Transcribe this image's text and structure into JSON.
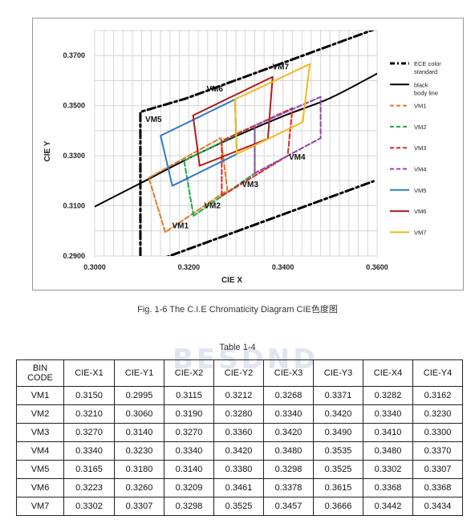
{
  "chart_data": {
    "type": "line",
    "xlabel": "CIE X",
    "ylabel": "CIE Y",
    "xlim": [
      0.3,
      0.36
    ],
    "ylim": [
      0.29,
      0.38
    ],
    "x_ticks": [
      "0.3000",
      "0.3200",
      "0.3400",
      "0.3600"
    ],
    "y_ticks": [
      "0.2900",
      "0.3100",
      "0.3300",
      "0.3500",
      "0.3700"
    ],
    "grid": true,
    "legend_position": "right",
    "series": [
      {
        "name": "ECE color standard",
        "kind": "dashdot",
        "color": "#000000",
        "segments": [
          {
            "x": [
              0.3097,
              0.3097,
              0.3193,
              0.3592
            ],
            "y": [
              0.29,
              0.3475,
              0.3528,
              0.3803
            ]
          },
          {
            "x": [
              0.313,
              0.3592
            ],
            "y": [
              0.288,
              0.3198
            ]
          }
        ]
      },
      {
        "name": "black body line",
        "kind": "solid",
        "color": "#000000",
        "x": [
          0.3,
          0.31,
          0.32,
          0.33,
          0.34,
          0.35,
          0.36
        ],
        "y": [
          0.3097,
          0.3193,
          0.329,
          0.3378,
          0.3458,
          0.353,
          0.3628
        ]
      },
      {
        "name": "VM1",
        "kind": "dashed",
        "color": "#e07b27",
        "x": [
          0.315,
          0.3115,
          0.3268,
          0.3282
        ],
        "y": [
          0.2995,
          0.3212,
          0.3371,
          0.3162
        ]
      },
      {
        "name": "VM2",
        "kind": "dashed",
        "color": "#1fa84a",
        "x": [
          0.321,
          0.319,
          0.334,
          0.334
        ],
        "y": [
          0.306,
          0.328,
          0.342,
          0.323
        ]
      },
      {
        "name": "VM3",
        "kind": "dashed",
        "color": "#e02626",
        "x": [
          0.327,
          0.327,
          0.342,
          0.341
        ],
        "y": [
          0.314,
          0.336,
          0.349,
          0.33
        ]
      },
      {
        "name": "VM4",
        "kind": "dashed",
        "color": "#8e44ad",
        "x": [
          0.334,
          0.334,
          0.348,
          0.348
        ],
        "y": [
          0.323,
          0.342,
          0.3535,
          0.337
        ]
      },
      {
        "name": "VM5",
        "kind": "solid",
        "color": "#2e7bc4",
        "x": [
          0.3165,
          0.314,
          0.3298,
          0.3302
        ],
        "y": [
          0.318,
          0.338,
          0.3525,
          0.3307
        ]
      },
      {
        "name": "VM6",
        "kind": "solid",
        "color": "#b01d1d",
        "x": [
          0.3223,
          0.3209,
          0.3378,
          0.3368
        ],
        "y": [
          0.326,
          0.3461,
          0.3615,
          0.3368
        ]
      },
      {
        "name": "VM7",
        "kind": "solid",
        "color": "#f2b81c",
        "x": [
          0.3302,
          0.3298,
          0.3457,
          0.3442
        ],
        "y": [
          0.3307,
          0.3525,
          0.3666,
          0.3434
        ]
      }
    ],
    "annotations": [
      {
        "text": "VM1",
        "x": 0.3182,
        "y": 0.301
      },
      {
        "text": "VM2",
        "x": 0.325,
        "y": 0.309
      },
      {
        "text": "VM3",
        "x": 0.333,
        "y": 0.3175
      },
      {
        "text": "VM4",
        "x": 0.343,
        "y": 0.3285
      },
      {
        "text": "VM5",
        "x": 0.3125,
        "y": 0.3435
      },
      {
        "text": "VM6",
        "x": 0.3255,
        "y": 0.3557
      },
      {
        "text": "VM7",
        "x": 0.3395,
        "y": 0.3645
      }
    ],
    "legend_labels": [
      [
        "ECE color",
        "standard"
      ],
      [
        "black",
        "body line"
      ],
      [
        "VM1"
      ],
      [
        "VM2"
      ],
      [
        "VM3"
      ],
      [
        "VM4"
      ],
      [
        "VM5"
      ],
      [
        "VM6"
      ],
      [
        "VM7"
      ]
    ]
  },
  "caption": "Fig. 1-6   The C.I.E Chromaticity Diagram CIE色度图",
  "watermark": "BESDND",
  "table": {
    "title": "Table 1-4",
    "headers": [
      "BIN CODE",
      "CIE-X1",
      "CIE-Y1",
      "CIE-X2",
      "CIE-Y2",
      "CIE-X3",
      "CIE-Y3",
      "CIE-X4",
      "CIE-Y4"
    ],
    "rows": [
      [
        "VM1",
        "0.3150",
        "0.2995",
        "0.3115",
        "0.3212",
        "0.3268",
        "0.3371",
        "0.3282",
        "0.3162"
      ],
      [
        "VM2",
        "0.3210",
        "0.3060",
        "0.3190",
        "0.3280",
        "0.3340",
        "0.3420",
        "0.3340",
        "0.3230"
      ],
      [
        "VM3",
        "0.3270",
        "0.3140",
        "0.3270",
        "0.3360",
        "0.3420",
        "0.3490",
        "0.3410",
        "0.3300"
      ],
      [
        "VM4",
        "0.3340",
        "0.3230",
        "0.3340",
        "0.3420",
        "0.3480",
        "0.3535",
        "0.3480",
        "0.3370"
      ],
      [
        "VM5",
        "0.3165",
        "0.3180",
        "0.3140",
        "0.3380",
        "0.3298",
        "0.3525",
        "0.3302",
        "0.3307"
      ],
      [
        "VM6",
        "0.3223",
        "0.3260",
        "0.3209",
        "0.3461",
        "0.3378",
        "0.3615",
        "0.3368",
        "0.3368"
      ],
      [
        "VM7",
        "0.3302",
        "0.3307",
        "0.3298",
        "0.3525",
        "0.3457",
        "0.3666",
        "0.3442",
        "0.3434"
      ]
    ]
  }
}
